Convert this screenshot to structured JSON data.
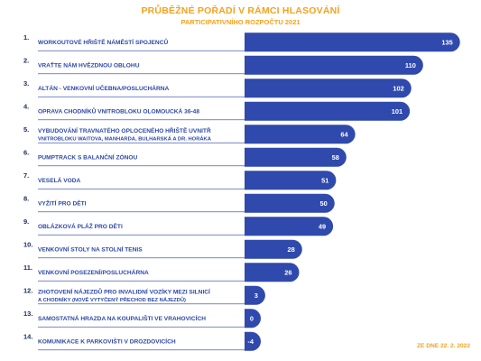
{
  "header": {
    "title": "PRŮBĚŽNÉ POŘADÍ V RÁMCI HLASOVÁNÍ",
    "subtitle": "PARTICIPATIVNÍHO ROZPOČTU 2021"
  },
  "footnote": "ZE DNE 22. 2. 2022",
  "colors": {
    "bar": "#2f49ad",
    "title": "#f4a21d",
    "label": "#2d48a8",
    "separator": "#4a5fb3"
  },
  "chart_data": {
    "type": "bar",
    "orientation": "horizontal",
    "title": "PRŮBĚŽNÉ POŘADÍ V RÁMCI HLASOVÁNÍ",
    "subtitle": "PARTICIPATIVNÍHO ROZPOČTU 2021",
    "xlabel": "",
    "ylabel": "",
    "grid": false,
    "legend": "none",
    "xlim": [
      -4,
      135
    ],
    "ranks": [
      "1.",
      "2.",
      "3.",
      "4.",
      "5.",
      "6.",
      "7.",
      "8.",
      "9.",
      "10.",
      "11.",
      "12.",
      "13.",
      "14."
    ],
    "categories": [
      [
        "WORKOUTOVÉ HŘIŠTĚ NÁMĚSTÍ SPOJENCŮ"
      ],
      [
        "VRAŤTE NÁM HVĚZDNOU OBLOHU"
      ],
      [
        "ALTÁN - VENKOVNÍ UČEBNA/POSLUCHÁRNA"
      ],
      [
        "OPRAVA CHODNÍKŮ VNITROBLOKU OLOMOUCKÁ 36-48"
      ],
      [
        "VYBUDOVÁNÍ TRAVNATÉHO OPLOCENÉHO HŘIŠTĚ UVNITŘ",
        "VNITROBLOKU WAITOVA, MANHARDA, BULHARSKÁ A DR. HORÁKA"
      ],
      [
        "PUMPTRACK S BALANČNÍ ZÓNOU"
      ],
      [
        "VESELÁ VODA"
      ],
      [
        "VYŽITÍ PRO DĚTI"
      ],
      [
        "OBLÁZKOVÁ PLÁŽ PRO DĚTI"
      ],
      [
        "VENKOVNÍ STOLY NA STOLNÍ TENIS"
      ],
      [
        "VENKOVNÍ POSEZENÍ/POSLUCHÁRNA"
      ],
      [
        "ZHOTOVENÍ NÁJEZDŮ PRO INVALIDNÍ VOZÍKY MEZI SILNICÍ",
        "A CHODNÍKY (NOVĚ VYTYČENÝ PŘECHOD BEZ NÁJEZDŮ)"
      ],
      [
        "SAMOSTATNÁ HRAZDA NA KOUPALIŠTI VE VRAHOVICÍCH"
      ],
      [
        "KOMUNIKACE K PARKOVIŠTI V DROZDOVICÍCH"
      ]
    ],
    "values": [
      135,
      110,
      102,
      101,
      64,
      58,
      51,
      50,
      49,
      28,
      26,
      3,
      0,
      -4
    ]
  }
}
